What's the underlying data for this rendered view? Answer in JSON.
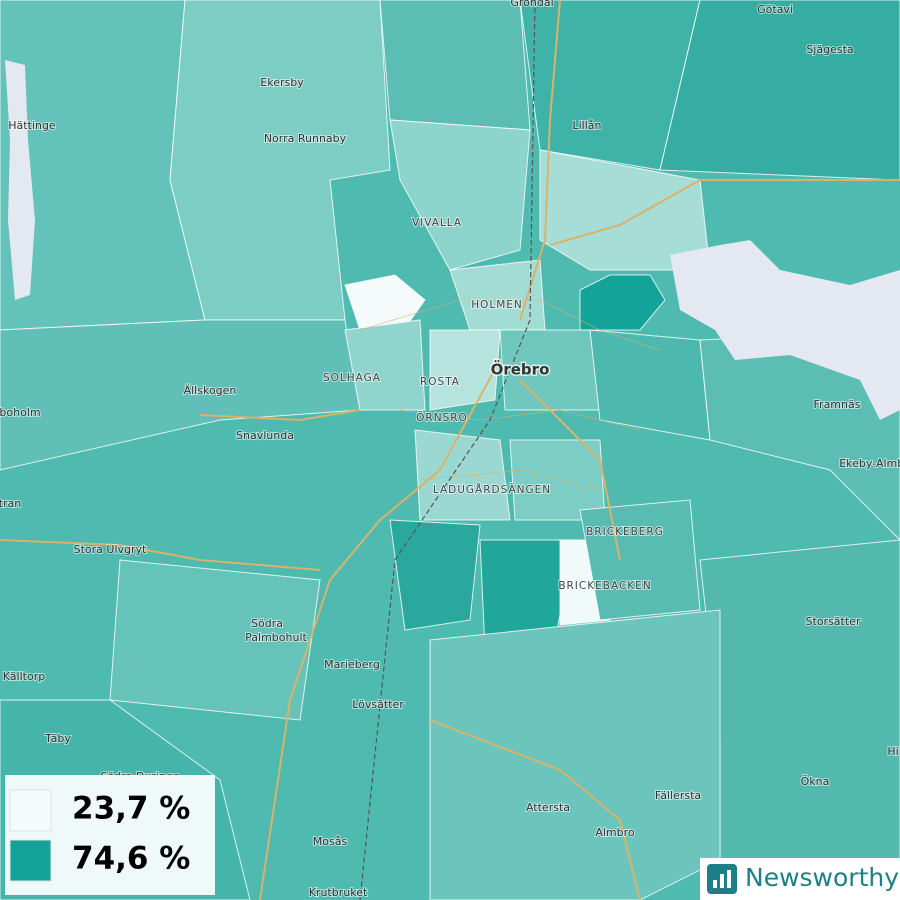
{
  "places": [
    "Grondal",
    "Götavi",
    "Sjägesta",
    "Ekersby",
    "Hättinge",
    "Lillån",
    "Norra Runnaby",
    "Ällskogen",
    "Snavlunda",
    "Framnäs",
    "Ekeby-Almby",
    "boholm",
    "tran",
    "Stora Ulvgryt",
    "Södra",
    "Palmbohult",
    "Storsätter",
    "Marieberg",
    "Källtorp",
    "Lövsätter",
    "Täby",
    "Hi",
    "Södra Duringe",
    "Ökna",
    "Fällersta",
    "Attersta",
    "Almbro",
    "Mosås",
    "Krutbruket"
  ],
  "districts": [
    "VIVALLA",
    "HOLMEN",
    "SOLHAGA",
    "ROSTA",
    "ÖRNSRO",
    "LADUGÅRDSÄNGEN",
    "BRICKEBERG",
    "BRICKEBACKEN"
  ],
  "city": "Örebro",
  "legend": [
    {
      "label": "23,7 %",
      "color": "#f4fbfa"
    },
    {
      "label": "74,6 %",
      "color": "#13a398"
    }
  ],
  "brand": "Newsworthy"
}
